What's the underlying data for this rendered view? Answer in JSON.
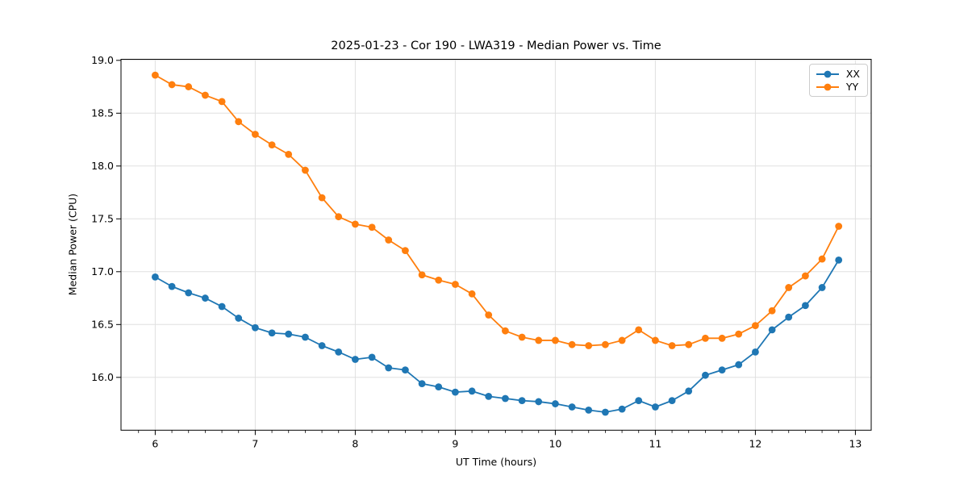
{
  "chart_data": {
    "type": "line",
    "title": "2025-01-23 - Cor 190 - LWA319 - Median Power vs. Time",
    "xlabel": "UT Time (hours)",
    "ylabel": "Median Power (CPU)",
    "xlim": [
      5.658,
      13.158
    ],
    "ylim": [
      15.5,
      19.01
    ],
    "xticks": [
      6,
      7,
      8,
      9,
      10,
      11,
      12,
      13
    ],
    "yticks": [
      16.0,
      16.5,
      17.0,
      17.5,
      18.0,
      18.5,
      19.0
    ],
    "minor_tick_step_x": 0.1666667,
    "grid": true,
    "legend_position": "upper right",
    "marker": "circle",
    "x": [
      6.0,
      6.167,
      6.333,
      6.5,
      6.667,
      6.833,
      7.0,
      7.167,
      7.333,
      7.5,
      7.667,
      7.833,
      8.0,
      8.167,
      8.333,
      8.5,
      8.667,
      8.833,
      9.0,
      9.167,
      9.333,
      9.5,
      9.667,
      9.833,
      10.0,
      10.167,
      10.333,
      10.5,
      10.667,
      10.833,
      11.0,
      11.167,
      11.333,
      11.5,
      11.667,
      11.833,
      12.0,
      12.167,
      12.333,
      12.5,
      12.667,
      12.833
    ],
    "series": [
      {
        "name": "XX",
        "color": "#1f77b4",
        "values": [
          16.95,
          16.86,
          16.8,
          16.75,
          16.67,
          16.56,
          16.47,
          16.42,
          16.41,
          16.38,
          16.3,
          16.24,
          16.17,
          16.19,
          16.09,
          16.07,
          15.94,
          15.91,
          15.86,
          15.87,
          15.82,
          15.8,
          15.78,
          15.77,
          15.75,
          15.72,
          15.69,
          15.67,
          15.7,
          15.78,
          15.72,
          15.78,
          15.87,
          16.02,
          16.07,
          16.12,
          16.24,
          16.45,
          16.57,
          16.68,
          16.85,
          17.11
        ]
      },
      {
        "name": "YY",
        "color": "#ff7f0e",
        "values": [
          18.86,
          18.77,
          18.75,
          18.67,
          18.61,
          18.42,
          18.3,
          18.2,
          18.11,
          17.96,
          17.7,
          17.52,
          17.45,
          17.42,
          17.3,
          17.2,
          16.97,
          16.92,
          16.88,
          16.79,
          16.59,
          16.44,
          16.38,
          16.35,
          16.35,
          16.31,
          16.3,
          16.31,
          16.35,
          16.45,
          16.35,
          16.3,
          16.31,
          16.37,
          16.37,
          16.41,
          16.49,
          16.63,
          16.85,
          16.96,
          17.12,
          17.43
        ]
      }
    ]
  },
  "style": {
    "grid_color": "#e0e0e0",
    "spine_color": "#000000",
    "tick_color": "#000000",
    "background": "#ffffff"
  }
}
